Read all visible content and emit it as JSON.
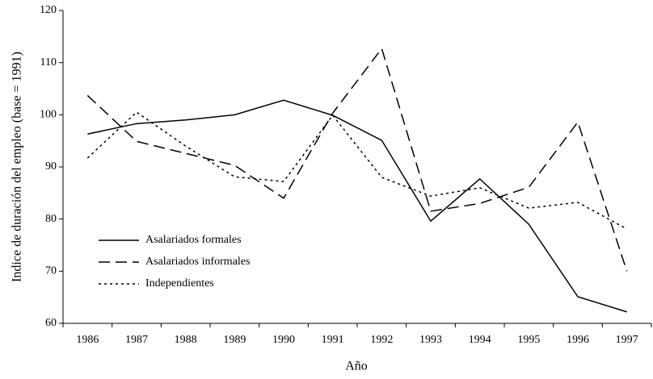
{
  "chart_data": {
    "type": "line",
    "x_label": "Año",
    "y_label": "Indice de duración del empleo (base = 1991)",
    "categories": [
      "1986",
      "1987",
      "1988",
      "1989",
      "1990",
      "1991",
      "1992",
      "1993",
      "1994",
      "1995",
      "1996",
      "1997"
    ],
    "series": [
      {
        "name": "Asalariados formales",
        "color": "#000000",
        "style": "solid",
        "values": [
          96.3,
          98.3,
          99.0,
          100.0,
          102.8,
          99.9,
          95.1,
          79.6,
          87.7,
          79.0,
          65.1,
          62.2
        ]
      },
      {
        "name": "Asalariados informales",
        "color": "#000000",
        "style": "dashed",
        "values": [
          103.7,
          94.9,
          92.6,
          90.3,
          84.0,
          100.3,
          112.7,
          81.5,
          83.0,
          86.1,
          98.6,
          70.0
        ]
      },
      {
        "name": "Independientes",
        "color": "#000000",
        "style": "dotted",
        "values": [
          91.7,
          100.5,
          94.0,
          88.1,
          87.2,
          99.9,
          88.0,
          84.4,
          86.0,
          82.1,
          83.2,
          78.1
        ]
      }
    ],
    "ylim": [
      60,
      120
    ],
    "yticks": [
      60,
      70,
      80,
      90,
      100,
      110,
      120
    ],
    "legend": "lower-left",
    "grid": false
  }
}
